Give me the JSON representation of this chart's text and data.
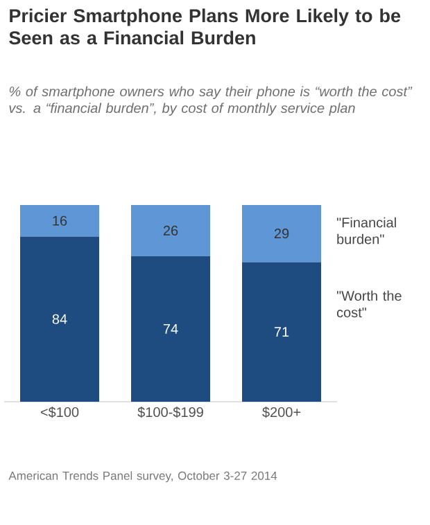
{
  "chart_data": {
    "type": "bar",
    "stacked": true,
    "data_labels": true,
    "legend": "right",
    "title": "Pricier Smartphone Plans More Likely to be Seen as a Financial Burden",
    "subtitle": "% of smartphone owners who say their phone is “worth the cost” vs. a “financial burden”, by cost of monthly service plan",
    "categories": [
      "<$100",
      "$100-$199",
      "$200+"
    ],
    "series": [
      {
        "name": "\"Worth the cost\"",
        "color": "#1f4c80",
        "values": [
          84,
          74,
          71
        ]
      },
      {
        "name": "\"Financial burden\"",
        "color": "#5f97d6",
        "values": [
          16,
          26,
          29
        ]
      }
    ],
    "annotations": [
      "American Trends Panel survey, October 3-27 2014"
    ]
  }
}
